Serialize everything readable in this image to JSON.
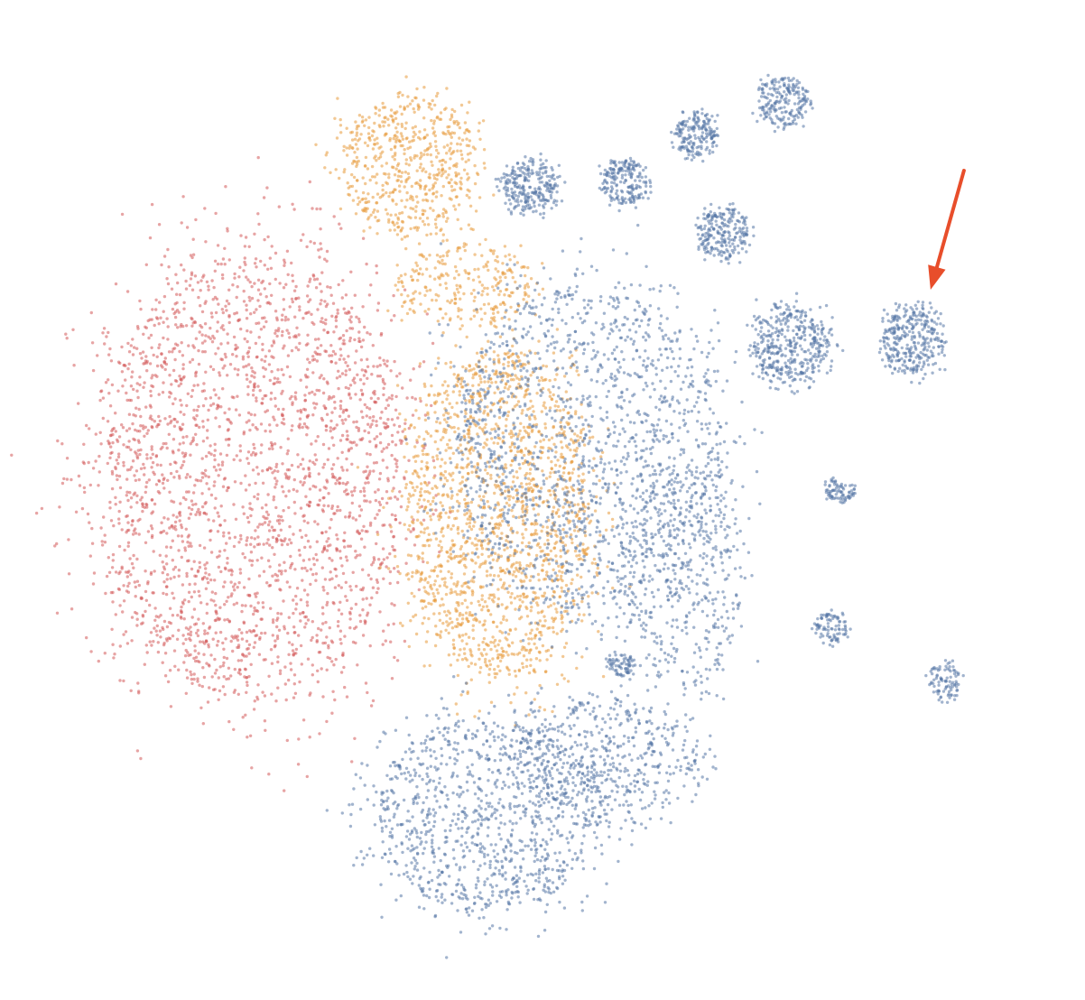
{
  "chart_data": {
    "type": "scatter",
    "title": "",
    "xlabel": "",
    "ylabel": "",
    "legend": "none",
    "grid": false,
    "axes_visible": false,
    "xlim": [
      0,
      100
    ],
    "ylim": [
      0,
      100
    ],
    "series": [
      {
        "color": "#d35a5a",
        "clusters": [
          {
            "cx": 21,
            "cy": 52,
            "rx": 15,
            "ry": 23,
            "n": 2600
          }
        ]
      },
      {
        "color": "#e89a3c",
        "clusters": [
          {
            "cx": 36.5,
            "cy": 84.5,
            "rx": 6.5,
            "ry": 7,
            "n": 600
          },
          {
            "cx": 45,
            "cy": 48,
            "rx": 9,
            "ry": 17,
            "n": 1800
          },
          {
            "cx": 42,
            "cy": 72,
            "rx": 7,
            "ry": 4,
            "n": 250
          }
        ]
      },
      {
        "color": "#5677a6",
        "clusters": [
          {
            "cx": 54,
            "cy": 55,
            "rx": 13,
            "ry": 17,
            "n": 1600
          },
          {
            "cx": 44,
            "cy": 17,
            "rx": 11,
            "ry": 10,
            "n": 1100
          },
          {
            "cx": 56,
            "cy": 23,
            "rx": 9,
            "ry": 6,
            "n": 500
          },
          {
            "cx": 63,
            "cy": 42,
            "rx": 6,
            "ry": 12,
            "n": 450
          },
          {
            "cx": 48.1,
            "cy": 82.2,
            "rx": 2.6,
            "ry": 2.8,
            "n": 260
          },
          {
            "cx": 57.4,
            "cy": 82.6,
            "rx": 2.2,
            "ry": 2.3,
            "n": 200
          },
          {
            "cx": 64.4,
            "cy": 87.5,
            "rx": 2.1,
            "ry": 2.3,
            "n": 190
          },
          {
            "cx": 67.1,
            "cy": 77.3,
            "rx": 2.5,
            "ry": 2.7,
            "n": 230
          },
          {
            "cx": 72.9,
            "cy": 90.8,
            "rx": 2.4,
            "ry": 2.6,
            "n": 210
          },
          {
            "cx": 73.6,
            "cy": 65.8,
            "rx": 3.6,
            "ry": 4.1,
            "n": 420
          },
          {
            "cx": 85.7,
            "cy": 66.3,
            "rx": 3.0,
            "ry": 3.5,
            "n": 330
          },
          {
            "cx": 77.7,
            "cy": 36.3,
            "rx": 1.5,
            "ry": 1.6,
            "n": 90
          },
          {
            "cx": 78.5,
            "cy": 50.6,
            "rx": 1.4,
            "ry": 1.2,
            "n": 80
          },
          {
            "cx": 88.7,
            "cy": 30.9,
            "rx": 1.5,
            "ry": 1.9,
            "n": 90
          },
          {
            "cx": 57.1,
            "cy": 32.6,
            "rx": 1.3,
            "ry": 1.2,
            "n": 70
          }
        ]
      }
    ],
    "annotation": {
      "type": "arrow",
      "color": "#e84e2b",
      "points_to": {
        "x": 87.3,
        "y": 71.4
      }
    }
  }
}
